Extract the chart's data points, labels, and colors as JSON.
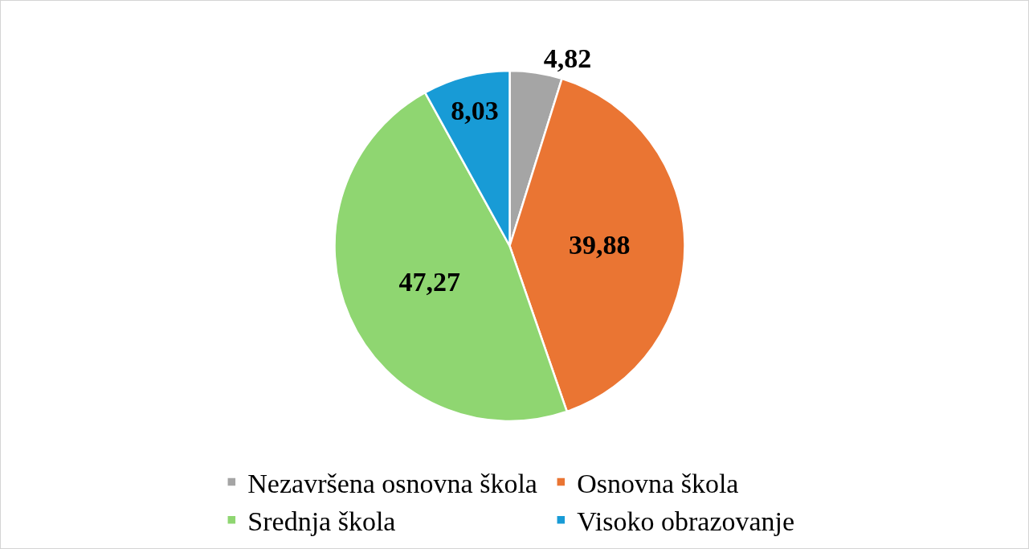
{
  "chart_data": {
    "type": "pie",
    "categories": [
      "Nezavršena osnovna škola",
      "Osnovna škola",
      "Srednja škola",
      "Visoko obrazovanje"
    ],
    "values": [
      4.82,
      39.88,
      47.27,
      8.03
    ],
    "colors": [
      "#a5a5a5",
      "#ea7533",
      "#8fd671",
      "#189bd6"
    ],
    "value_labels": [
      "4,82",
      "39,88",
      "47,27",
      "8,03"
    ],
    "legend": "bottom"
  }
}
